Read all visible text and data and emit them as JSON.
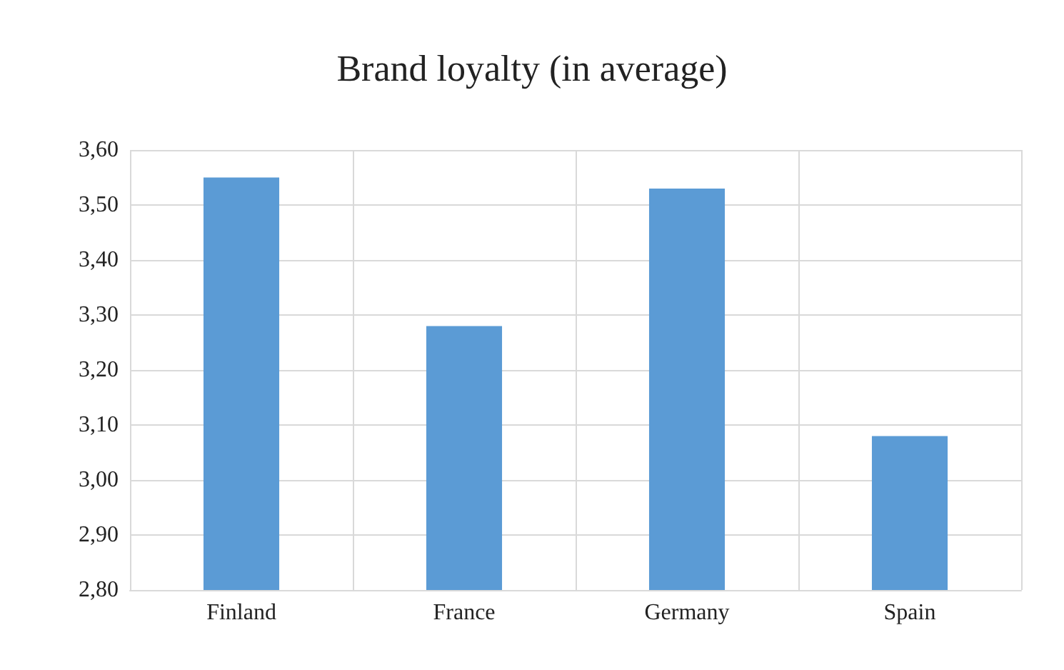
{
  "chart_data": {
    "type": "bar",
    "title": "Brand loyalty (in average)",
    "categories": [
      "Finland",
      "France",
      "Germany",
      "Spain"
    ],
    "values": [
      3.55,
      3.28,
      3.53,
      3.08
    ],
    "color": "#5b9bd5",
    "ylim": [
      2.8,
      3.6
    ],
    "yticks": [
      {
        "value": 2.8,
        "label": "2,80"
      },
      {
        "value": 2.9,
        "label": "2,90"
      },
      {
        "value": 3.0,
        "label": "3,00"
      },
      {
        "value": 3.1,
        "label": "3,10"
      },
      {
        "value": 3.2,
        "label": "3,20"
      },
      {
        "value": 3.3,
        "label": "3,30"
      },
      {
        "value": 3.4,
        "label": "3,40"
      },
      {
        "value": 3.5,
        "label": "3,50"
      },
      {
        "value": 3.6,
        "label": "3,60"
      }
    ],
    "grid": true
  }
}
